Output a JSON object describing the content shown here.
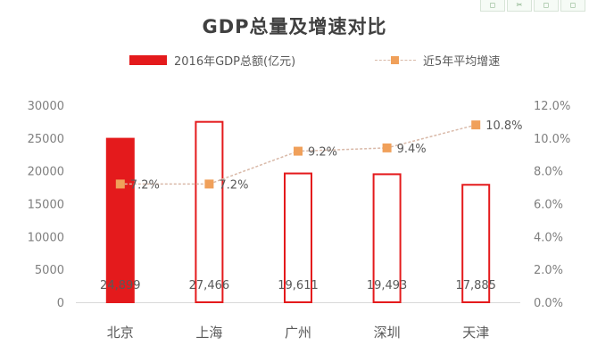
{
  "title": "GDP总量及增速对比",
  "toolbar": [
    "◻",
    "✂",
    "◻",
    "◻"
  ],
  "legend": {
    "bar": "2016年GDP总额(亿元)",
    "line": "近5年平均增速"
  },
  "chart_data": {
    "type": "bar",
    "title": "GDP总量及增速对比",
    "categories": [
      "北京",
      "上海",
      "广州",
      "深圳",
      "天津"
    ],
    "series": [
      {
        "name": "2016年GDP总额(亿元)",
        "type": "bar",
        "axis": "left",
        "values": [
          24899,
          27466,
          19611,
          19493,
          17885
        ],
        "labels": [
          "24,899",
          "27,466",
          "19,611",
          "19,493",
          "17,885"
        ],
        "filled": [
          true,
          false,
          false,
          false,
          false
        ]
      },
      {
        "name": "近5年平均增速",
        "type": "line",
        "axis": "right",
        "values": [
          7.2,
          7.2,
          9.2,
          9.4,
          10.8
        ],
        "labels": [
          "7.2%",
          "7.2%",
          "9.2%",
          "9.4%",
          "10.8%"
        ]
      }
    ],
    "y_left": {
      "min": 0,
      "max": 30000,
      "ticks": [
        0,
        5000,
        10000,
        15000,
        20000,
        25000,
        30000
      ]
    },
    "y_right": {
      "min": 0,
      "max": 12,
      "ticks": [
        "0.0%",
        "2.0%",
        "4.0%",
        "6.0%",
        "8.0%",
        "10.0%",
        "12.0%"
      ]
    },
    "legend_position": "top",
    "grid": false,
    "colors": {
      "bar": "#e41a1c",
      "bar_outline": "#e41a1c",
      "line": "#d9b9a8",
      "marker": "#f0a05a"
    }
  }
}
